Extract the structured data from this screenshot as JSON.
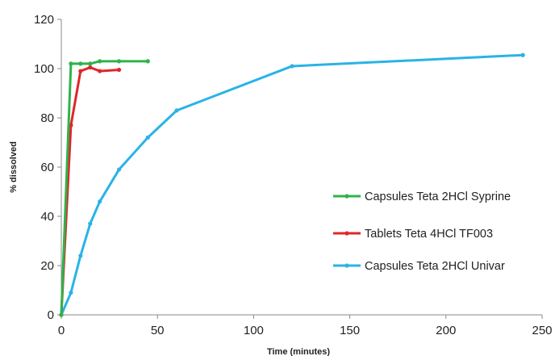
{
  "chart_data": {
    "type": "line",
    "xlabel": "Time (minutes)",
    "ylabel": "% dissolved",
    "xlim": [
      0,
      250
    ],
    "ylim": [
      0,
      120
    ],
    "xticks": [
      "0",
      "50",
      "100",
      "150",
      "200",
      "250"
    ],
    "yticks": [
      "0",
      "20",
      "40",
      "60",
      "80",
      "100",
      "120"
    ],
    "grid": false,
    "legend_position": "right",
    "series": [
      {
        "name": "Capsules Teta 2HCl Syprine",
        "color": "#2eb34a",
        "x": [
          0,
          5,
          10,
          15,
          20,
          30,
          45
        ],
        "y": [
          0,
          102,
          102,
          102,
          103,
          103,
          103
        ]
      },
      {
        "name": "Tablets Teta 4HCl TF003",
        "color": "#e0262b",
        "x": [
          0,
          5,
          10,
          15,
          20,
          30
        ],
        "y": [
          0,
          77,
          99,
          100.5,
          99,
          99.5
        ]
      },
      {
        "name": "Capsules Teta 2HCl Univar",
        "color": "#29b3e6",
        "x": [
          0,
          5,
          10,
          15,
          20,
          30,
          45,
          60,
          120,
          240
        ],
        "y": [
          0,
          9,
          24,
          37,
          46,
          59,
          72,
          83,
          101,
          105.5
        ]
      }
    ]
  }
}
